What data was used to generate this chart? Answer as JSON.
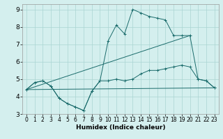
{
  "xlabel": "Humidex (Indice chaleur)",
  "background_color": "#d4efee",
  "grid_color": "#aad4d2",
  "line_color": "#1a6b6b",
  "xlim": [
    -0.5,
    23.5
  ],
  "ylim": [
    3,
    9.3
  ],
  "xticks": [
    0,
    1,
    2,
    3,
    4,
    5,
    6,
    7,
    8,
    9,
    10,
    11,
    12,
    13,
    14,
    15,
    16,
    17,
    18,
    19,
    20,
    21,
    22,
    23
  ],
  "yticks": [
    3,
    4,
    5,
    6,
    7,
    8,
    9
  ],
  "series": [
    {
      "name": "lower_curve",
      "x": [
        0,
        1,
        2,
        3,
        4,
        5,
        6,
        7,
        8,
        9,
        10,
        11,
        12,
        13,
        14,
        15,
        16,
        17,
        18,
        19,
        20,
        21,
        22,
        23
      ],
      "y": [
        4.4,
        4.8,
        4.9,
        4.6,
        3.9,
        3.6,
        3.4,
        3.2,
        4.3,
        4.9,
        4.9,
        5.0,
        4.9,
        5.0,
        5.3,
        5.5,
        5.5,
        5.6,
        5.7,
        5.8,
        5.7,
        5.0,
        4.9,
        4.5
      ],
      "marker": true
    },
    {
      "name": "upper_curve",
      "x": [
        0,
        1,
        2,
        3,
        4,
        5,
        6,
        7,
        8,
        9,
        10,
        11,
        12,
        13,
        14,
        15,
        16,
        17,
        18,
        19,
        20,
        21,
        22,
        23
      ],
      "y": [
        4.4,
        4.8,
        4.9,
        4.6,
        3.9,
        3.6,
        3.4,
        3.2,
        4.3,
        4.9,
        7.2,
        8.1,
        7.6,
        9.0,
        8.8,
        8.6,
        8.5,
        8.4,
        7.5,
        7.5,
        7.5,
        5.0,
        4.9,
        4.5
      ],
      "marker": true
    },
    {
      "name": "flat_line",
      "x": [
        0,
        23
      ],
      "y": [
        4.4,
        4.5
      ],
      "marker": false
    },
    {
      "name": "diagonal_line",
      "x": [
        0,
        20
      ],
      "y": [
        4.4,
        7.5
      ],
      "marker": false
    }
  ]
}
